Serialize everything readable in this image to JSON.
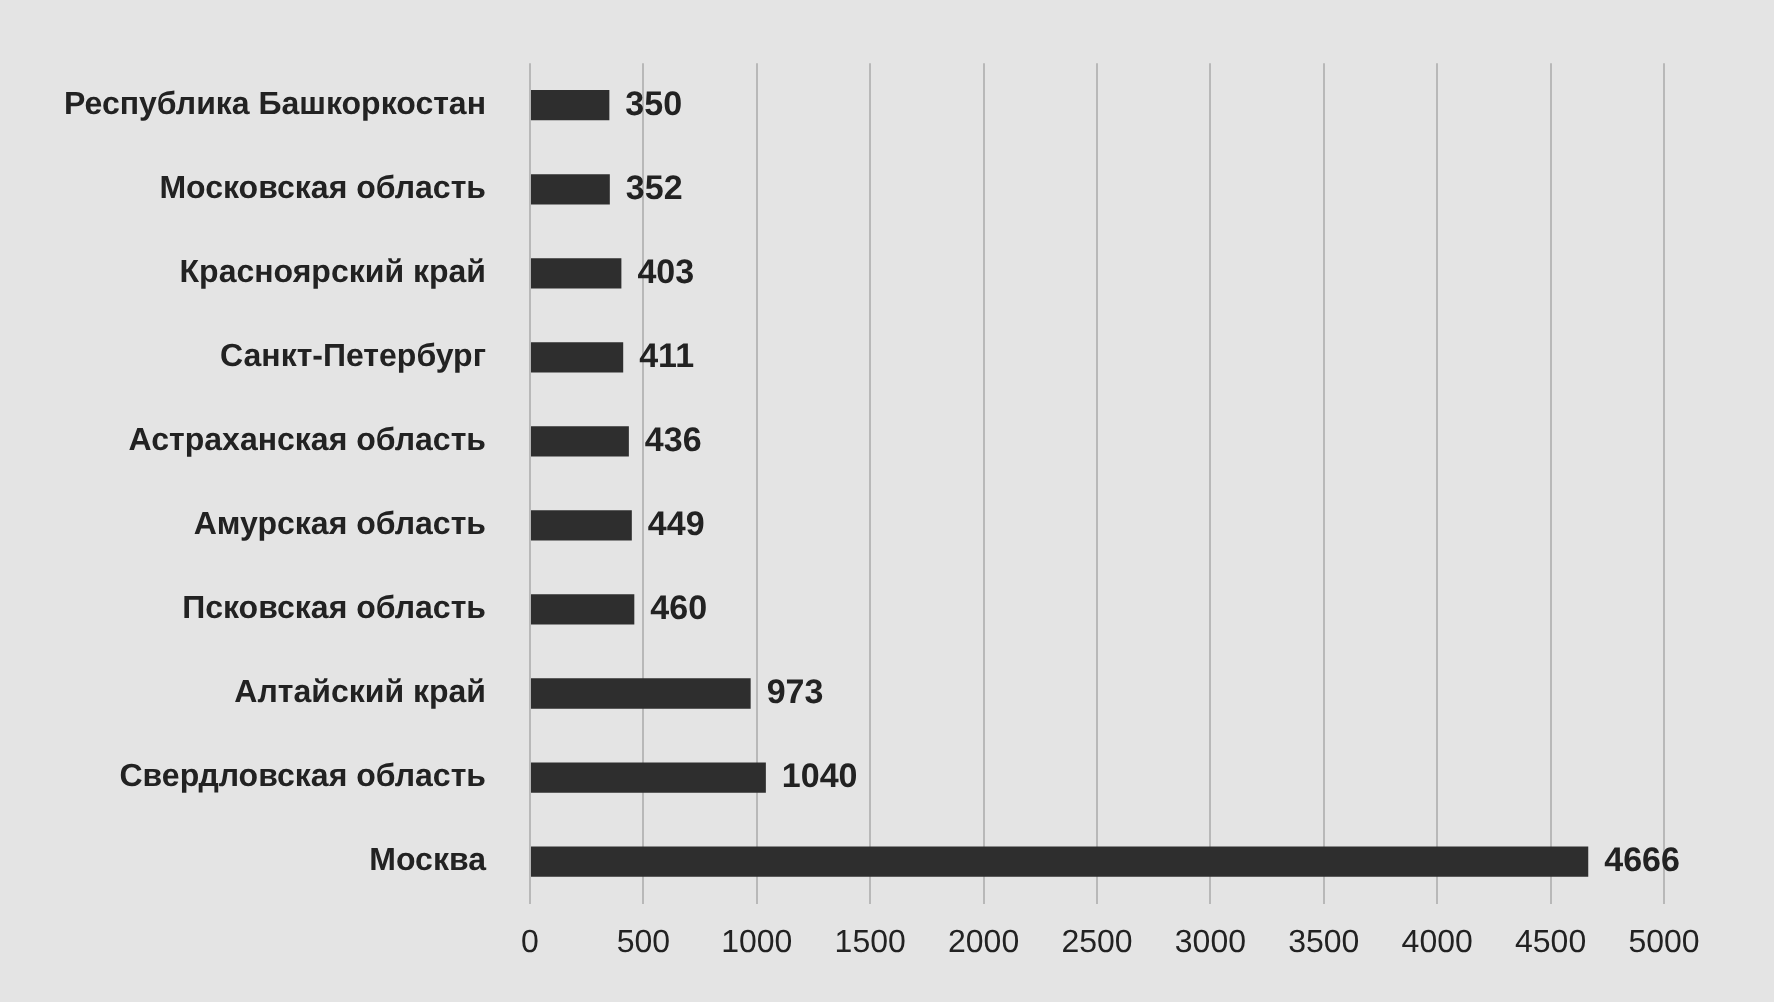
{
  "chart_data": {
    "type": "bar",
    "orientation": "horizontal",
    "categories": [
      "Республика Башкоркостан",
      "Московская область",
      "Красноярский край",
      "Санкт-Петербург",
      "Астраханская область",
      "Амурская область",
      "Псковская область",
      "Алтайский край",
      "Свердловская область",
      "Москва"
    ],
    "values": [
      350,
      352,
      403,
      411,
      436,
      449,
      460,
      973,
      1040,
      4666
    ],
    "color": "#2e2e2e",
    "xlim": [
      0,
      5000
    ],
    "xticks": [
      0,
      500,
      1000,
      1500,
      2000,
      2500,
      3000,
      3500,
      4000,
      4500,
      5000
    ],
    "grid": "x",
    "data_labels": true
  }
}
